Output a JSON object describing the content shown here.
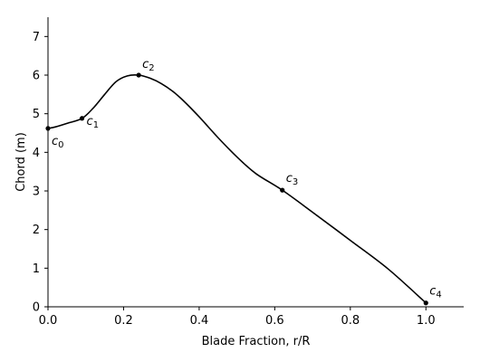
{
  "chart_data": {
    "type": "line",
    "xlabel": "Blade Fraction, r/R",
    "ylabel": "Chord (m)",
    "xlim": [
      0,
      1.1
    ],
    "ylim": [
      0,
      7.5
    ],
    "xticks": [
      0.0,
      0.2,
      0.4,
      0.6,
      0.8,
      1.0
    ],
    "yticks": [
      0,
      1,
      2,
      3,
      4,
      5,
      6,
      7
    ],
    "xtick_labels": [
      "0.0",
      "0.2",
      "0.4",
      "0.6",
      "0.8",
      "1.0"
    ],
    "ytick_labels": [
      "0",
      "1",
      "2",
      "3",
      "4",
      "5",
      "6",
      "7"
    ],
    "grid": false,
    "series": [
      {
        "x": [
          0.0,
          0.02,
          0.05,
          0.09,
          0.12,
          0.15,
          0.18,
          0.21,
          0.24,
          0.27,
          0.3,
          0.33,
          0.36,
          0.4,
          0.45,
          0.5,
          0.55,
          0.62,
          0.7,
          0.8,
          0.9,
          1.0
        ],
        "y": [
          4.62,
          4.66,
          4.75,
          4.88,
          5.15,
          5.5,
          5.83,
          5.98,
          6.0,
          5.92,
          5.78,
          5.58,
          5.32,
          4.92,
          4.38,
          3.88,
          3.45,
          3.02,
          2.45,
          1.72,
          0.98,
          0.1
        ]
      }
    ],
    "control_points": [
      {
        "label": "c",
        "sub": "0",
        "x": 0.0,
        "y": 4.62
      },
      {
        "label": "c",
        "sub": "1",
        "x": 0.09,
        "y": 4.88
      },
      {
        "label": "c",
        "sub": "2",
        "x": 0.24,
        "y": 6.0
      },
      {
        "label": "c",
        "sub": "3",
        "x": 0.62,
        "y": 3.02
      },
      {
        "label": "c",
        "sub": "4",
        "x": 1.0,
        "y": 0.1
      }
    ]
  }
}
